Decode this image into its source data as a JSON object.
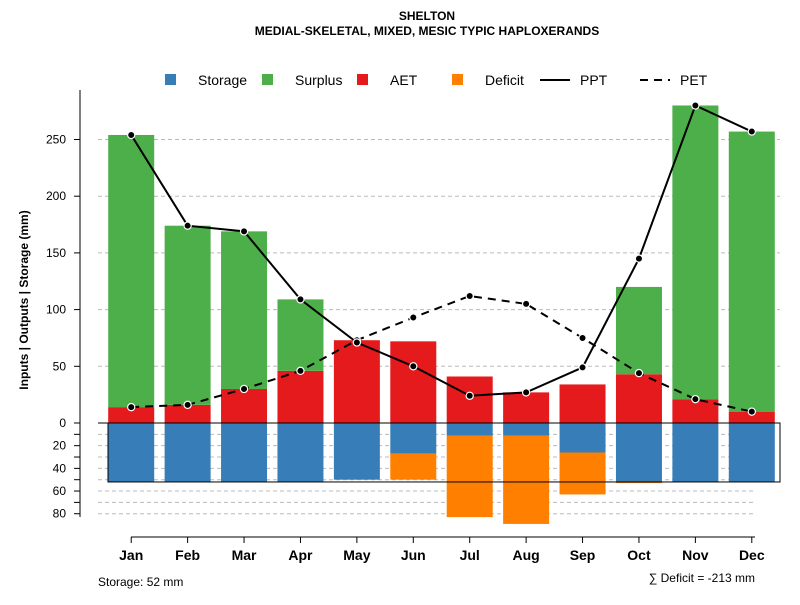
{
  "chart_data": {
    "type": "bar",
    "title": "SHELTON",
    "subtitle": "MEDIAL-SKELETAL, MIXED, MESIC TYPIC HAPLOXERANDS",
    "ylabel": "Inputs | Outputs | Storage    (mm)",
    "categories": [
      "Jan",
      "Feb",
      "Mar",
      "Apr",
      "May",
      "Jun",
      "Jul",
      "Aug",
      "Sep",
      "Oct",
      "Nov",
      "Dec"
    ],
    "ylim": [
      -80,
      280
    ],
    "upper_ticks": [
      "0",
      "50",
      "100",
      "150",
      "200",
      "250"
    ],
    "lower_ticks": [
      "20",
      "40",
      "60",
      "80"
    ],
    "legend": [
      {
        "key": "storage",
        "label": "Storage",
        "kind": "box",
        "color": "#377EB8"
      },
      {
        "key": "surplus",
        "label": "Surplus",
        "kind": "box",
        "color": "#4DAF4A"
      },
      {
        "key": "aet",
        "label": "AET",
        "kind": "box",
        "color": "#E41A1C"
      },
      {
        "key": "deficit",
        "label": "Deficit",
        "kind": "box",
        "color": "#FF7F00"
      },
      {
        "key": "ppt",
        "label": "PPT",
        "kind": "solid",
        "color": "#000000"
      },
      {
        "key": "pet",
        "label": "PET",
        "kind": "dashed",
        "color": "#000000"
      }
    ],
    "series": [
      {
        "name": "AET",
        "values": [
          14,
          16,
          30,
          46,
          73,
          72,
          41,
          27,
          34,
          43,
          21,
          10
        ]
      },
      {
        "name": "Surplus",
        "values": [
          240,
          158,
          139,
          63,
          0,
          0,
          0,
          0,
          0,
          77,
          259,
          247
        ]
      },
      {
        "name": "Storage",
        "values": [
          52,
          52,
          52,
          52,
          50,
          27,
          11,
          11,
          26,
          52,
          52,
          52
        ]
      },
      {
        "name": "Deficit",
        "values": [
          0,
          0,
          0,
          0,
          0,
          23,
          72,
          78,
          37,
          1,
          0,
          0
        ]
      },
      {
        "name": "PPT",
        "values": [
          254,
          174,
          169,
          109,
          71,
          50,
          24,
          27,
          49,
          145,
          280,
          257
        ]
      },
      {
        "name": "PET",
        "values": [
          14,
          16,
          30,
          46,
          73,
          93,
          112,
          105,
          75,
          44,
          21,
          10
        ]
      }
    ],
    "storage_capacity": 52,
    "storage_label": "Storage: 52 mm",
    "deficit_label": "∑ Deficit = -213 mm"
  }
}
